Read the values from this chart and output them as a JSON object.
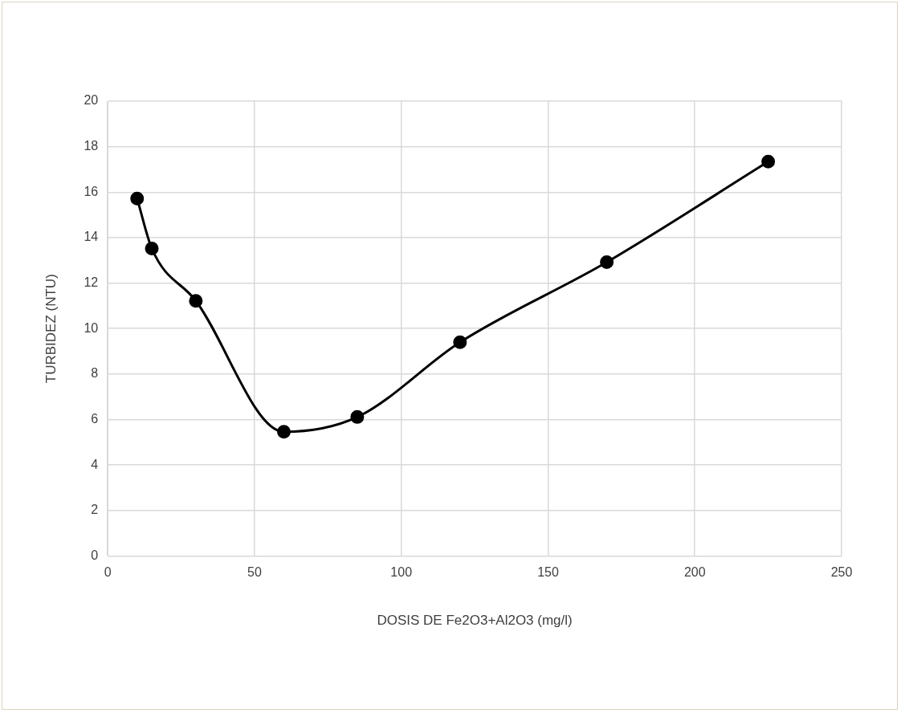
{
  "chart_data": {
    "type": "line",
    "xlabel": "DOSIS DE Fe2O3+Al2O3 (mg/l)",
    "ylabel": "TURBIDEZ (NTU)",
    "x": [
      10,
      15,
      30,
      60,
      85,
      120,
      170,
      225
    ],
    "series": [
      {
        "color": "#000000",
        "values": [
          15.72,
          13.52,
          11.22,
          5.46,
          6.11,
          9.4,
          12.92,
          17.34
        ]
      }
    ],
    "xlim": [
      0,
      250
    ],
    "xticks": [
      0,
      50,
      100,
      150,
      200,
      250
    ],
    "ylim": [
      0,
      20
    ],
    "yticks": [
      0,
      2,
      4,
      6,
      8,
      10,
      12,
      14,
      16,
      18,
      20
    ],
    "grid": true,
    "legend": false,
    "marker": "circle",
    "line_style": "solid"
  }
}
